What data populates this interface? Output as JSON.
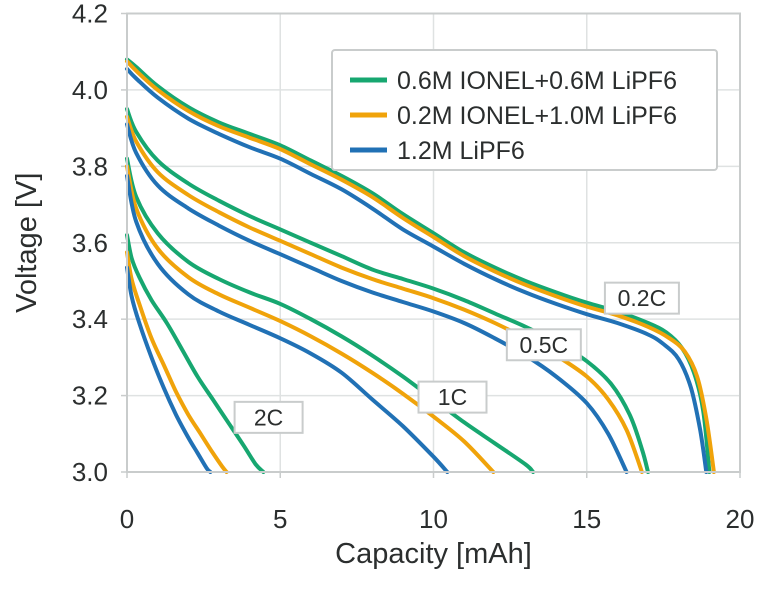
{
  "chart_data": {
    "type": "line",
    "title": "",
    "xlabel": "Capacity [mAh]",
    "ylabel": "Voltage [V]",
    "xlim": [
      0,
      20
    ],
    "ylim": [
      3.0,
      4.2
    ],
    "xticks": [
      0,
      5,
      10,
      15,
      20
    ],
    "yticks": [
      3.0,
      3.2,
      3.4,
      3.6,
      3.8,
      4.0,
      4.2
    ],
    "grid": true,
    "legend_position": "upper right",
    "colors": {
      "green": "#17A770",
      "orange": "#F0A30A",
      "blue": "#2171B5",
      "text": "#2B2E2E",
      "grid": "#DFE2E2",
      "spine": "#C9CCCC",
      "box_border": "#C9CCCC",
      "box_fill": "#FFFFFF"
    },
    "legend": [
      {
        "label": "0.6M IONEL+0.6M LiPF6",
        "color": "green"
      },
      {
        "label": "0.2M IONEL+1.0M LiPF6",
        "color": "orange"
      },
      {
        "label": "1.2M LiPF6",
        "color": "blue"
      }
    ],
    "annotations": [
      {
        "label": "2C",
        "x": 4.62,
        "v": 3.143
      },
      {
        "label": "1C",
        "x": 10.62,
        "v": 3.196
      },
      {
        "label": "0.5C",
        "x": 13.6,
        "v": 3.333
      },
      {
        "label": "0.2C",
        "x": 16.8,
        "v": 3.455
      }
    ],
    "series": [
      {
        "name": "0.6M IONEL+0.6M LiPF6 @ 0.2C",
        "rate": "0.2C",
        "color": "green",
        "points": [
          [
            0,
            4.08
          ],
          [
            0.3,
            4.06
          ],
          [
            1,
            4.01
          ],
          [
            2,
            3.955
          ],
          [
            3,
            3.915
          ],
          [
            4,
            3.885
          ],
          [
            5,
            3.855
          ],
          [
            6,
            3.815
          ],
          [
            7,
            3.775
          ],
          [
            8,
            3.73
          ],
          [
            9,
            3.675
          ],
          [
            10,
            3.625
          ],
          [
            11,
            3.575
          ],
          [
            12,
            3.535
          ],
          [
            13,
            3.5
          ],
          [
            14,
            3.47
          ],
          [
            15,
            3.443
          ],
          [
            16,
            3.42
          ],
          [
            17,
            3.39
          ],
          [
            17.6,
            3.365
          ],
          [
            18.1,
            3.325
          ],
          [
            18.5,
            3.26
          ],
          [
            18.8,
            3.16
          ],
          [
            19.0,
            3.0
          ]
        ]
      },
      {
        "name": "0.2M IONEL+1.0M LiPF6 @ 0.2C",
        "rate": "0.2C",
        "color": "orange",
        "points": [
          [
            0,
            4.075
          ],
          [
            0.3,
            4.05
          ],
          [
            1,
            4.0
          ],
          [
            2,
            3.945
          ],
          [
            3,
            3.905
          ],
          [
            4,
            3.875
          ],
          [
            5,
            3.845
          ],
          [
            6,
            3.805
          ],
          [
            7,
            3.765
          ],
          [
            8,
            3.72
          ],
          [
            9,
            3.665
          ],
          [
            10,
            3.615
          ],
          [
            11,
            3.565
          ],
          [
            12,
            3.525
          ],
          [
            13,
            3.49
          ],
          [
            14,
            3.46
          ],
          [
            15,
            3.433
          ],
          [
            16,
            3.41
          ],
          [
            17,
            3.38
          ],
          [
            17.7,
            3.35
          ],
          [
            18.2,
            3.315
          ],
          [
            18.6,
            3.25
          ],
          [
            18.9,
            3.14
          ],
          [
            19.15,
            3.0
          ]
        ]
      },
      {
        "name": "1.2M LiPF6 @ 0.2C",
        "rate": "0.2C",
        "color": "blue",
        "points": [
          [
            0,
            4.055
          ],
          [
            0.3,
            4.03
          ],
          [
            1,
            3.98
          ],
          [
            2,
            3.925
          ],
          [
            3,
            3.885
          ],
          [
            4,
            3.85
          ],
          [
            5,
            3.82
          ],
          [
            6,
            3.78
          ],
          [
            7,
            3.74
          ],
          [
            8,
            3.69
          ],
          [
            9,
            3.635
          ],
          [
            10,
            3.59
          ],
          [
            11,
            3.545
          ],
          [
            12,
            3.505
          ],
          [
            13,
            3.47
          ],
          [
            14,
            3.44
          ],
          [
            15,
            3.413
          ],
          [
            16,
            3.39
          ],
          [
            17,
            3.36
          ],
          [
            17.5,
            3.335
          ],
          [
            18.0,
            3.295
          ],
          [
            18.4,
            3.22
          ],
          [
            18.7,
            3.11
          ],
          [
            18.9,
            3.0
          ]
        ]
      },
      {
        "name": "0.6M IONEL+0.6M LiPF6 @ 0.5C",
        "rate": "0.5C",
        "color": "green",
        "points": [
          [
            0,
            3.95
          ],
          [
            0.3,
            3.89
          ],
          [
            1,
            3.815
          ],
          [
            2,
            3.755
          ],
          [
            3,
            3.71
          ],
          [
            4,
            3.67
          ],
          [
            5,
            3.635
          ],
          [
            6,
            3.6
          ],
          [
            7,
            3.565
          ],
          [
            8,
            3.53
          ],
          [
            9,
            3.505
          ],
          [
            10,
            3.48
          ],
          [
            11,
            3.45
          ],
          [
            12,
            3.415
          ],
          [
            13,
            3.38
          ],
          [
            14,
            3.34
          ],
          [
            15,
            3.29
          ],
          [
            15.8,
            3.23
          ],
          [
            16.4,
            3.15
          ],
          [
            16.8,
            3.06
          ],
          [
            17.0,
            3.0
          ]
        ]
      },
      {
        "name": "0.2M IONEL+1.0M LiPF6 @ 0.5C",
        "rate": "0.5C",
        "color": "orange",
        "points": [
          [
            0,
            3.93
          ],
          [
            0.3,
            3.865
          ],
          [
            1,
            3.785
          ],
          [
            2,
            3.725
          ],
          [
            3,
            3.68
          ],
          [
            4,
            3.64
          ],
          [
            5,
            3.605
          ],
          [
            6,
            3.57
          ],
          [
            7,
            3.535
          ],
          [
            8,
            3.505
          ],
          [
            9,
            3.48
          ],
          [
            10,
            3.455
          ],
          [
            11,
            3.425
          ],
          [
            12,
            3.39
          ],
          [
            13,
            3.35
          ],
          [
            14,
            3.305
          ],
          [
            15,
            3.25
          ],
          [
            15.7,
            3.19
          ],
          [
            16.3,
            3.11
          ],
          [
            16.8,
            3.0
          ]
        ]
      },
      {
        "name": "1.2M LiPF6 @ 0.5C",
        "rate": "0.5C",
        "color": "blue",
        "points": [
          [
            0,
            3.91
          ],
          [
            0.3,
            3.835
          ],
          [
            1,
            3.75
          ],
          [
            2,
            3.69
          ],
          [
            3,
            3.645
          ],
          [
            4,
            3.605
          ],
          [
            5,
            3.57
          ],
          [
            6,
            3.535
          ],
          [
            7,
            3.5
          ],
          [
            8,
            3.47
          ],
          [
            9,
            3.445
          ],
          [
            10,
            3.42
          ],
          [
            11,
            3.39
          ],
          [
            12,
            3.35
          ],
          [
            13,
            3.305
          ],
          [
            14,
            3.25
          ],
          [
            15,
            3.18
          ],
          [
            15.7,
            3.1
          ],
          [
            16.3,
            3.0
          ]
        ]
      },
      {
        "name": "0.6M IONEL+0.6M LiPF6 @ 1C",
        "rate": "1C",
        "color": "green",
        "points": [
          [
            0,
            3.82
          ],
          [
            0.3,
            3.72
          ],
          [
            1,
            3.625
          ],
          [
            2,
            3.55
          ],
          [
            3,
            3.505
          ],
          [
            4,
            3.47
          ],
          [
            5,
            3.44
          ],
          [
            6,
            3.4
          ],
          [
            7,
            3.355
          ],
          [
            8,
            3.305
          ],
          [
            9,
            3.25
          ],
          [
            10,
            3.19
          ],
          [
            11,
            3.13
          ],
          [
            12,
            3.075
          ],
          [
            13,
            3.02
          ],
          [
            13.25,
            3.0
          ]
        ]
      },
      {
        "name": "0.2M IONEL+1.0M LiPF6 @ 1C",
        "rate": "1C",
        "color": "orange",
        "points": [
          [
            0,
            3.8
          ],
          [
            0.3,
            3.69
          ],
          [
            1,
            3.585
          ],
          [
            2,
            3.51
          ],
          [
            3,
            3.465
          ],
          [
            4,
            3.43
          ],
          [
            5,
            3.395
          ],
          [
            6,
            3.355
          ],
          [
            7,
            3.31
          ],
          [
            8,
            3.26
          ],
          [
            9,
            3.205
          ],
          [
            10,
            3.145
          ],
          [
            11,
            3.08
          ],
          [
            11.95,
            3.0
          ]
        ]
      },
      {
        "name": "1.2M LiPF6 @ 1C",
        "rate": "1C",
        "color": "blue",
        "points": [
          [
            0,
            3.775
          ],
          [
            0.3,
            3.655
          ],
          [
            1,
            3.545
          ],
          [
            2,
            3.465
          ],
          [
            3,
            3.42
          ],
          [
            4,
            3.385
          ],
          [
            5,
            3.35
          ],
          [
            6,
            3.31
          ],
          [
            7,
            3.26
          ],
          [
            8,
            3.19
          ],
          [
            9,
            3.12
          ],
          [
            10,
            3.04
          ],
          [
            10.45,
            3.0
          ]
        ]
      },
      {
        "name": "0.6M IONEL+0.6M LiPF6 @ 2C",
        "rate": "2C",
        "color": "green",
        "points": [
          [
            0,
            3.62
          ],
          [
            0.15,
            3.56
          ],
          [
            0.4,
            3.51
          ],
          [
            0.8,
            3.45
          ],
          [
            1.3,
            3.39
          ],
          [
            1.8,
            3.32
          ],
          [
            2.3,
            3.25
          ],
          [
            2.8,
            3.19
          ],
          [
            3.3,
            3.13
          ],
          [
            3.8,
            3.07
          ],
          [
            4.2,
            3.02
          ],
          [
            4.45,
            3.0
          ]
        ]
      },
      {
        "name": "0.2M IONEL+1.0M LiPF6 @ 2C",
        "rate": "2C",
        "color": "orange",
        "points": [
          [
            0,
            3.575
          ],
          [
            0.15,
            3.505
          ],
          [
            0.4,
            3.44
          ],
          [
            0.8,
            3.35
          ],
          [
            1.2,
            3.28
          ],
          [
            1.6,
            3.21
          ],
          [
            2.0,
            3.15
          ],
          [
            2.4,
            3.1
          ],
          [
            2.8,
            3.05
          ],
          [
            3.1,
            3.015
          ],
          [
            3.25,
            3.0
          ]
        ]
      },
      {
        "name": "1.2M LiPF6 @ 2C",
        "rate": "2C",
        "color": "blue",
        "points": [
          [
            0,
            3.535
          ],
          [
            0.15,
            3.46
          ],
          [
            0.4,
            3.39
          ],
          [
            0.8,
            3.3
          ],
          [
            1.2,
            3.22
          ],
          [
            1.6,
            3.15
          ],
          [
            2.0,
            3.09
          ],
          [
            2.3,
            3.05
          ],
          [
            2.6,
            3.01
          ],
          [
            2.72,
            3.0
          ]
        ]
      }
    ]
  }
}
